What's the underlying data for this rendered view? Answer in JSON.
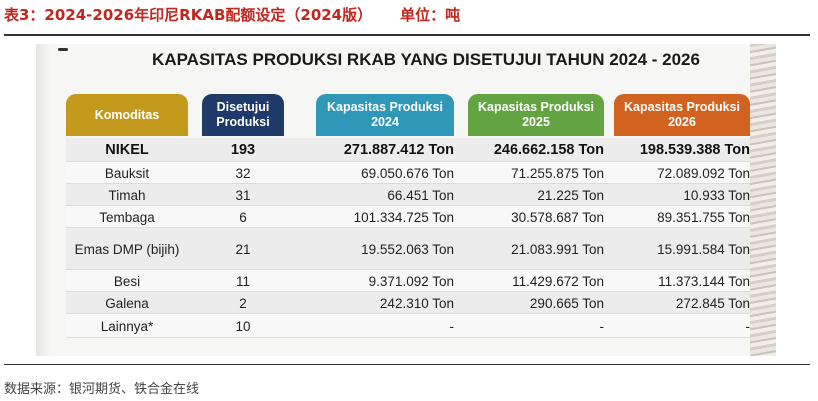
{
  "caption": {
    "title": "表3：2024-2026年印尼RKAB配额设定（2024版）",
    "unit": "单位：吨"
  },
  "source": "数据来源：银河期货、铁合金在线",
  "table": {
    "title": "KAPASITAS PRODUKSI RKAB YANG DISETUJUI TAHUN 2024 - 2026",
    "headers": [
      "Komoditas",
      "Disetujui Produksi",
      "Kapasitas Produksi 2024",
      "Kapasitas Produksi 2025",
      "Kapasitas Produksi 2026"
    ],
    "header_colors": [
      "#c49a1c",
      "#1e3a69",
      "#2f97b7",
      "#62a441",
      "#d2621f"
    ],
    "rows": [
      {
        "komoditas": "NIKEL",
        "disetujui": "193",
        "k2024": "271.887.412 Ton",
        "k2025": "246.662.158 Ton",
        "k2026": "198.539.388 Ton"
      },
      {
        "komoditas": "Bauksit",
        "disetujui": "32",
        "k2024": "69.050.676 Ton",
        "k2025": "71.255.875 Ton",
        "k2026": "72.089.092 Ton"
      },
      {
        "komoditas": "Timah",
        "disetujui": "31",
        "k2024": "66.451 Ton",
        "k2025": "21.225 Ton",
        "k2026": "10.933 Ton"
      },
      {
        "komoditas": "Tembaga",
        "disetujui": "6",
        "k2024": "101.334.725 Ton",
        "k2025": "30.578.687 Ton",
        "k2026": "89.351.755 Ton"
      },
      {
        "komoditas": "Emas DMP (bijih)",
        "disetujui": "21",
        "k2024": "19.552.063 Ton",
        "k2025": "21.083.991 Ton",
        "k2026": "15.991.584 Ton"
      },
      {
        "komoditas": "Besi",
        "disetujui": "11",
        "k2024": "9.371.092 Ton",
        "k2025": "11.429.672 Ton",
        "k2026": "11.373.144 Ton"
      },
      {
        "komoditas": "Galena",
        "disetujui": "2",
        "k2024": "242.310 Ton",
        "k2025": "290.665 Ton",
        "k2026": "272.845 Ton"
      },
      {
        "komoditas": "Lainnya*",
        "disetujui": "10",
        "k2024": "-",
        "k2025": "-",
        "k2026": "-"
      }
    ]
  }
}
